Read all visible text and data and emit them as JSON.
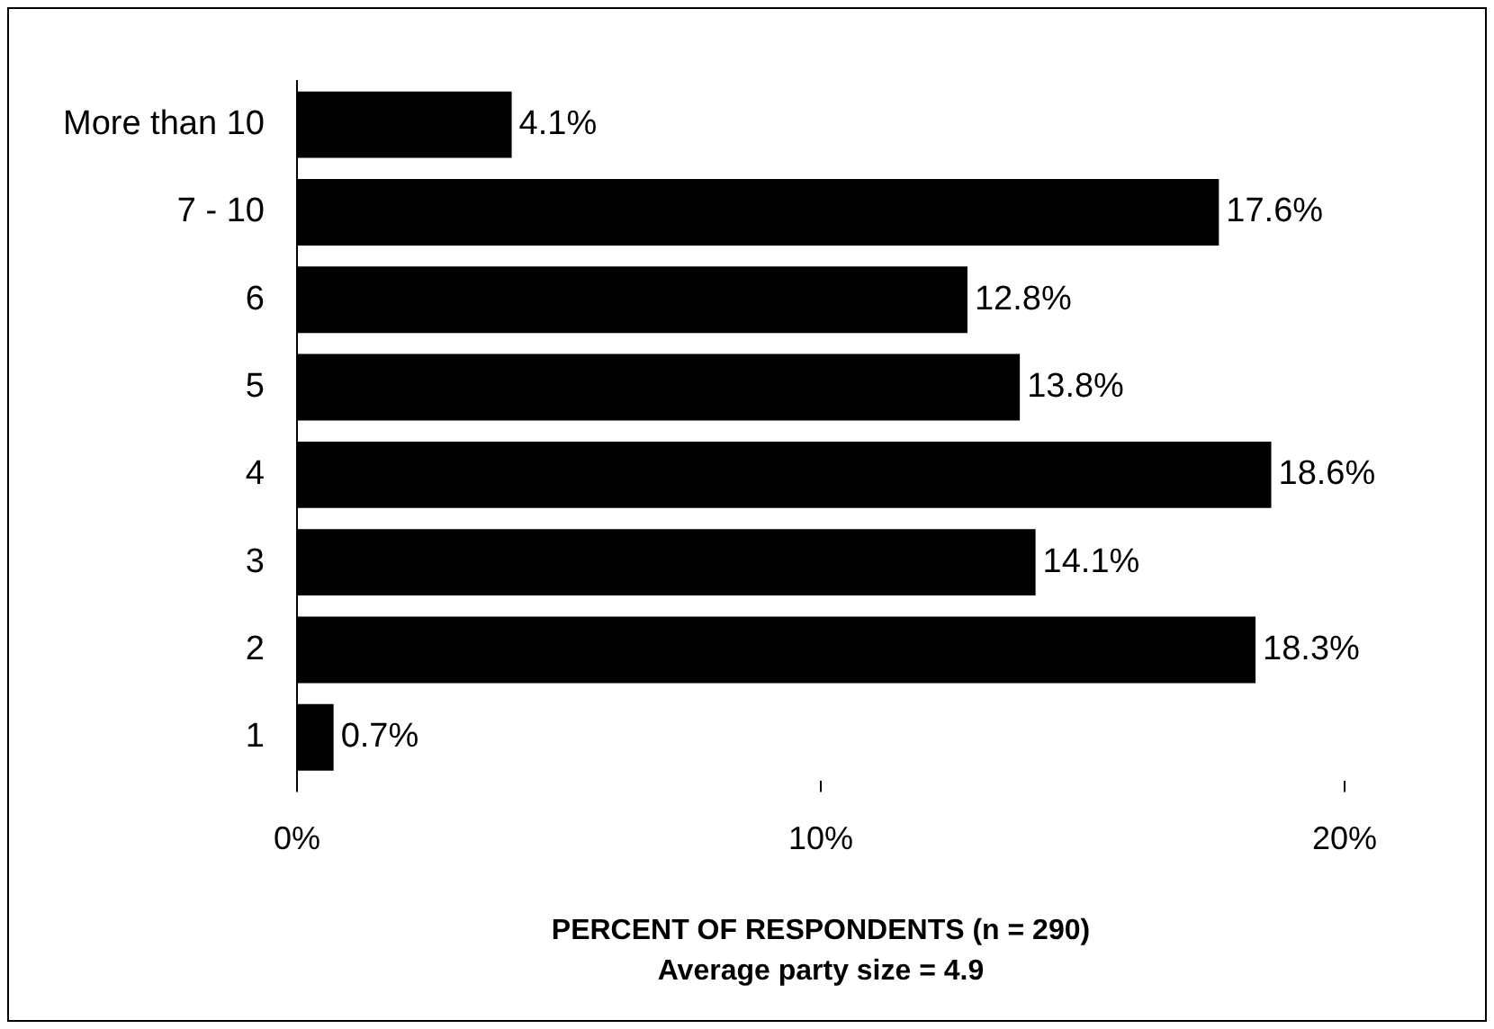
{
  "chart_data": {
    "type": "bar",
    "orientation": "horizontal",
    "xlabel": "PERCENT OF RESPONDENTS (n = 290)",
    "annotations": [
      "Average party size = 4.9"
    ],
    "categories": [
      "More than 10",
      "7 - 10",
      "6",
      "5",
      "4",
      "3",
      "2",
      "1"
    ],
    "values": [
      4.1,
      17.6,
      12.8,
      13.8,
      18.6,
      14.1,
      18.3,
      0.7
    ],
    "value_labels": [
      "4.1%",
      "17.6%",
      "12.8%",
      "13.8%",
      "18.6%",
      "14.1%",
      "18.3%",
      "0.7%"
    ],
    "color": "#000000",
    "xlim": [
      0,
      20
    ],
    "xticks": [
      {
        "value": 0,
        "label": "0%"
      },
      {
        "value": 10,
        "label": "10%"
      },
      {
        "value": 20,
        "label": "20%"
      }
    ],
    "grid": false,
    "legend": false
  }
}
